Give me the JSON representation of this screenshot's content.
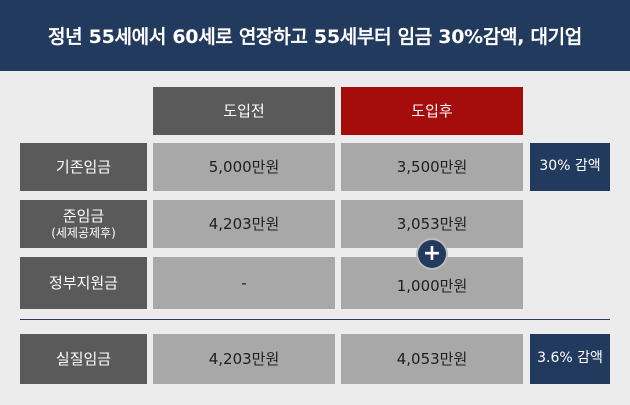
{
  "title": "정년 55세에서 60세로 연장하고 55세부터 임금 30%감액, 대기업",
  "columns": {
    "before": "도입전",
    "after": "도입후"
  },
  "rows": [
    {
      "label": "기존임금",
      "before": "5,000만원",
      "after": "3,500만원",
      "badge": "30% 감액"
    },
    {
      "label": "준임금",
      "sublabel": "(세제공제후)",
      "before": "4,203만원",
      "after": "3,053만원"
    },
    {
      "label": "정부지원금",
      "before": "-",
      "after": "1,000만원"
    },
    {
      "label": "실질임금",
      "before": "4,203만원",
      "after": "4,053만원",
      "badge": "3.6% 감액"
    }
  ],
  "plus_symbol": "+",
  "colors": {
    "header": "#223a5e",
    "after_header": "#a50c0c",
    "label": "#5a5a5a",
    "value": "#a8a8a8",
    "badge": "#223a5e"
  }
}
